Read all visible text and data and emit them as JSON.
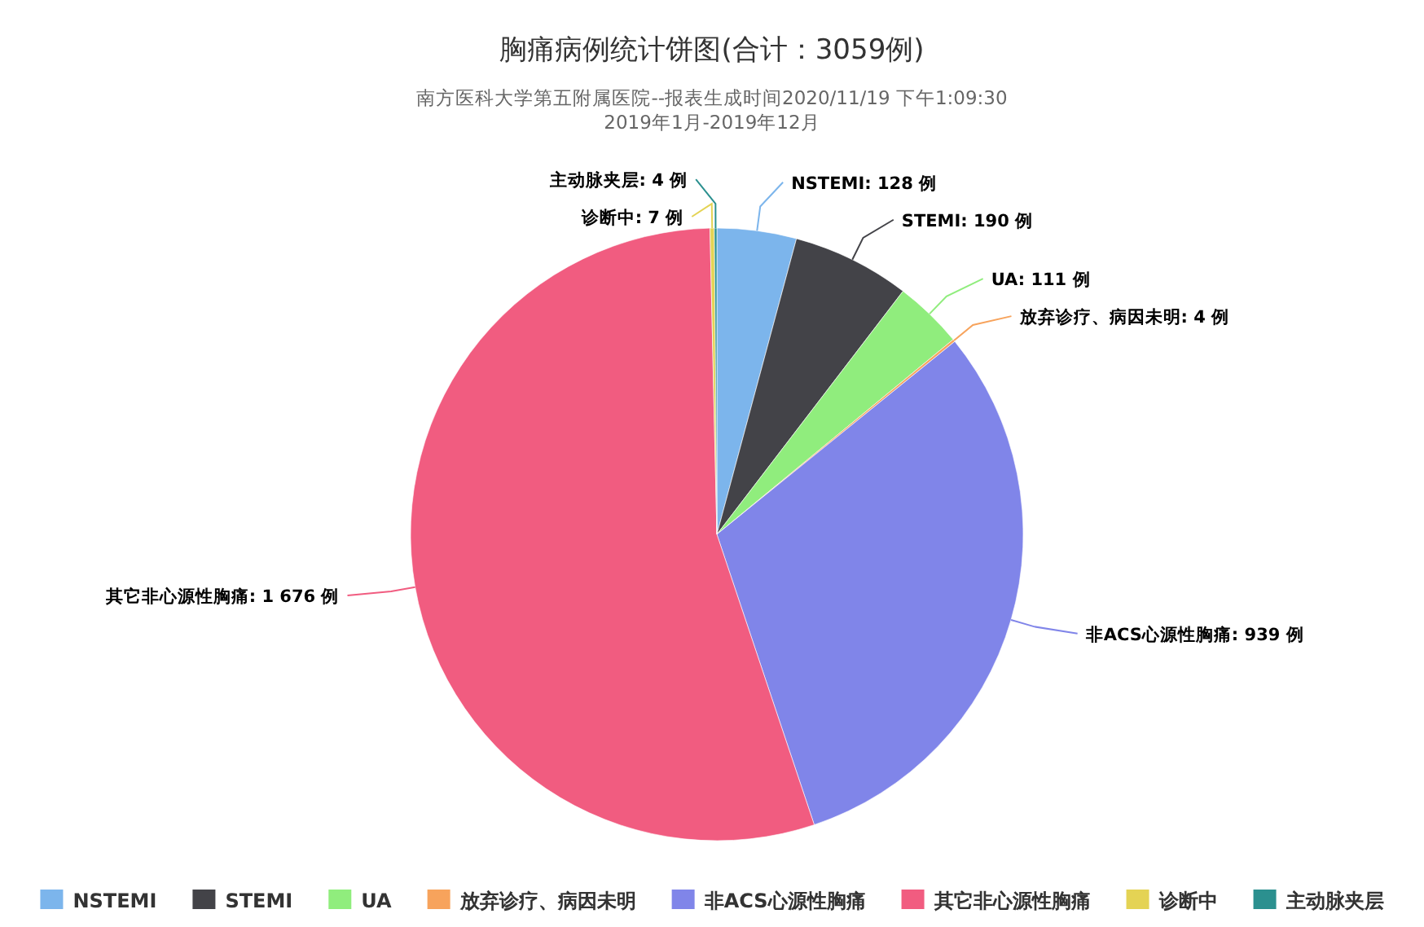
{
  "chart_data": {
    "type": "pie",
    "title": "胸痛病例统计饼图(合计：3059例)",
    "subtitle": "南方医科大学第五附属医院--报表生成时间2020/11/19 下午1:09:30",
    "annotations": [
      "2019年1月-2019年12月"
    ],
    "categories": [
      "NSTEMI",
      "STEMI",
      "UA",
      "放弃诊疗、病因未明",
      "非ACS心源性胸痛",
      "其它非心源性胸痛",
      "诊断中",
      "主动脉夹层"
    ],
    "values": [
      128,
      190,
      111,
      4,
      939,
      1676,
      7,
      4
    ],
    "value_labels": [
      ": 128 例",
      ": 190 例",
      ": 111 例",
      ": 4 例",
      ": 939 例",
      ": 1 676 例",
      ": 7 例",
      ": 4 例"
    ],
    "colors": [
      "#7cb5ec",
      "#434348",
      "#90ed7d",
      "#f7a35c",
      "#8085e9",
      "#f15c80",
      "#e4d354",
      "#2b908f"
    ],
    "legend": "bottom"
  }
}
